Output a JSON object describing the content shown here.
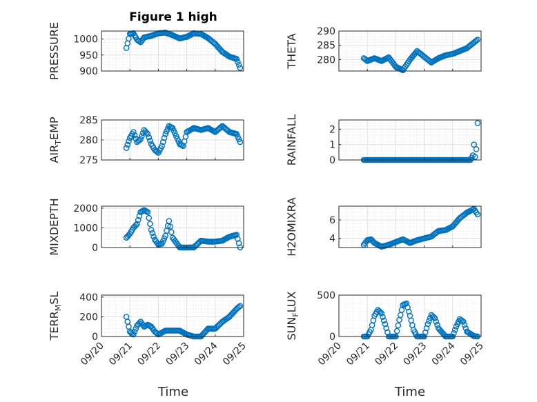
{
  "figure": {
    "title": "Figure 1 high"
  },
  "colors": {
    "marker": "#0072bd",
    "axis": "#262626",
    "grid": "#dfdfdf",
    "background": "#ffffff"
  },
  "chart_data": [
    {
      "type": "scatter",
      "id": "pressure",
      "title": "Figure 1 high",
      "ylabel": "PRESSURE",
      "ylim": [
        900,
        1025
      ],
      "yticks": [
        900,
        950,
        1000
      ],
      "grid": "on",
      "x": [
        "09/20 21:00",
        "09/21 00:00",
        "09/21 03:00",
        "09/21 06:00",
        "09/21 09:00",
        "09/21 12:00",
        "09/21 18:00",
        "09/22 00:00",
        "09/22 06:00",
        "09/22 12:00",
        "09/22 18:00",
        "09/23 00:00",
        "09/23 06:00",
        "09/23 12:00",
        "09/23 18:00",
        "09/24 00:00",
        "09/24 06:00",
        "09/24 12:00",
        "09/24 18:00",
        "09/24 21:00"
      ],
      "y": [
        972,
        1016,
        1018,
        998,
        990,
        1005,
        1010,
        1018,
        1020,
        1012,
        1002,
        1007,
        1018,
        1016,
        1003,
        985,
        960,
        945,
        938,
        910
      ]
    },
    {
      "type": "scatter",
      "id": "theta",
      "ylabel": "THETA",
      "ylim": [
        276,
        290
      ],
      "yticks": [
        280,
        285,
        290
      ],
      "grid": "on",
      "x": [
        "09/20 21:00",
        "09/21 00:00",
        "09/21 06:00",
        "09/21 12:00",
        "09/21 18:00",
        "09/22 00:00",
        "09/22 06:00",
        "09/22 12:00",
        "09/22 18:00",
        "09/23 00:00",
        "09/23 06:00",
        "09/23 12:00",
        "09/23 18:00",
        "09/24 00:00",
        "09/24 06:00",
        "09/24 12:00",
        "09/24 18:00",
        "09/24 21:00"
      ],
      "y": [
        280.5,
        279.5,
        280.5,
        279.5,
        280.8,
        277.5,
        276.3,
        280,
        283,
        281,
        279,
        280.5,
        281.5,
        282,
        283,
        284,
        286,
        287
      ]
    },
    {
      "type": "scatter",
      "id": "air_temp",
      "ylabel": "AIR_TEMP",
      "ylim": [
        275,
        285
      ],
      "yticks": [
        275,
        280,
        285
      ],
      "grid": "on",
      "x": [
        "09/20 21:00",
        "09/21 00:00",
        "09/21 03:00",
        "09/21 06:00",
        "09/21 09:00",
        "09/21 12:00",
        "09/21 15:00",
        "09/21 18:00",
        "09/21 21:00",
        "09/22 00:00",
        "09/22 03:00",
        "09/22 06:00",
        "09/22 09:00",
        "09/22 12:00",
        "09/22 15:00",
        "09/22 18:00",
        "09/22 21:00",
        "09/23 00:00",
        "09/23 06:00",
        "09/23 12:00",
        "09/23 18:00",
        "09/24 00:00",
        "09/24 06:00",
        "09/24 12:00",
        "09/24 18:00",
        "09/24 21:00"
      ],
      "y": [
        278,
        280.5,
        282,
        279.5,
        280.2,
        282.5,
        281.5,
        279,
        277.5,
        276.8,
        278.5,
        281.5,
        283.5,
        283,
        281,
        279,
        278.5,
        282,
        283,
        282.5,
        283,
        282,
        283.5,
        282,
        281.5,
        279.5
      ]
    },
    {
      "type": "scatter",
      "id": "rainfall",
      "ylabel": "RAINFALL",
      "ylim": [
        0,
        2.6
      ],
      "yticks": [
        0,
        1,
        2
      ],
      "grid": "on",
      "x": [
        "09/20 21:00",
        "09/21 00:00",
        "09/21 06:00",
        "09/21 12:00",
        "09/21 18:00",
        "09/22 00:00",
        "09/22 06:00",
        "09/22 12:00",
        "09/22 18:00",
        "09/23 00:00",
        "09/23 06:00",
        "09/23 12:00",
        "09/23 18:00",
        "09/24 00:00",
        "09/24 06:00",
        "09/24 12:00",
        "09/24 15:00",
        "09/24 17:00",
        "09/24 18:00",
        "09/24 19:00",
        "09/24 20:00",
        "09/24 21:00"
      ],
      "y": [
        0,
        0,
        0,
        0,
        0,
        0,
        0,
        0,
        0,
        0,
        0,
        0,
        0,
        0,
        0,
        0,
        0,
        0.3,
        1.0,
        0.2,
        0.7,
        2.4
      ]
    },
    {
      "type": "scatter",
      "id": "mixdepth",
      "ylabel": "MIXDEPTH",
      "ylim": [
        0,
        2100
      ],
      "yticks": [
        0,
        1000,
        2000
      ],
      "grid": "on",
      "x": [
        "09/20 21:00",
        "09/21 00:00",
        "09/21 03:00",
        "09/21 06:00",
        "09/21 09:00",
        "09/21 12:00",
        "09/21 15:00",
        "09/21 18:00",
        "09/21 21:00",
        "09/22 00:00",
        "09/22 03:00",
        "09/22 06:00",
        "09/22 09:00",
        "09/22 12:00",
        "09/22 18:00",
        "09/23 00:00",
        "09/23 06:00",
        "09/23 12:00",
        "09/23 18:00",
        "09/24 00:00",
        "09/24 06:00",
        "09/24 12:00",
        "09/24 18:00",
        "09/24 21:00"
      ],
      "y": [
        500,
        700,
        1000,
        1200,
        1800,
        1900,
        1800,
        900,
        400,
        150,
        200,
        600,
        1350,
        500,
        10,
        0,
        10,
        350,
        300,
        300,
        350,
        550,
        650,
        10
      ]
    },
    {
      "type": "scatter",
      "id": "h2omixra",
      "ylabel": "H2OMIXRA",
      "ylim": [
        3,
        7.5
      ],
      "yticks": [
        4,
        6
      ],
      "grid": "on",
      "x": [
        "09/20 21:00",
        "09/21 00:00",
        "09/21 03:00",
        "09/21 06:00",
        "09/21 12:00",
        "09/21 18:00",
        "09/22 00:00",
        "09/22 06:00",
        "09/22 12:00",
        "09/22 18:00",
        "09/23 00:00",
        "09/23 06:00",
        "09/23 12:00",
        "09/23 18:00",
        "09/24 00:00",
        "09/24 06:00",
        "09/24 12:00",
        "09/24 18:00",
        "09/24 21:00"
      ],
      "y": [
        3.3,
        3.8,
        3.9,
        3.5,
        3.1,
        3.3,
        3.6,
        3.9,
        3.5,
        3.8,
        4.0,
        4.2,
        4.8,
        4.9,
        5.3,
        6.2,
        6.8,
        7.2,
        6.6
      ]
    },
    {
      "type": "scatter",
      "id": "terr_msl",
      "ylabel": "TERR_MSL",
      "ylim": [
        0,
        420
      ],
      "yticks": [
        0,
        200,
        400
      ],
      "grid": "on",
      "x": [
        "09/20 21:00",
        "09/21 00:00",
        "09/21 03:00",
        "09/21 06:00",
        "09/21 09:00",
        "09/21 12:00",
        "09/21 15:00",
        "09/21 18:00",
        "09/21 21:00",
        "09/22 00:00",
        "09/22 06:00",
        "09/22 12:00",
        "09/22 18:00",
        "09/23 00:00",
        "09/23 06:00",
        "09/23 12:00",
        "09/23 18:00",
        "09/24 00:00",
        "09/24 06:00",
        "09/24 12:00",
        "09/24 18:00",
        "09/24 21:00"
      ],
      "x_note": "",
      "y": [
        200,
        50,
        20,
        110,
        150,
        100,
        120,
        100,
        50,
        20,
        60,
        60,
        60,
        20,
        0,
        0,
        80,
        80,
        150,
        200,
        280,
        310
      ]
    },
    {
      "type": "scatter",
      "id": "sun_flux",
      "ylabel": "SUN_FLUX",
      "ylim": [
        0,
        500
      ],
      "yticks": [
        0,
        500
      ],
      "grid": "on",
      "x": [
        "09/20 21:00",
        "09/21 00:00",
        "09/21 03:00",
        "09/21 06:00",
        "09/21 09:00",
        "09/21 12:00",
        "09/21 15:00",
        "09/21 18:00",
        "09/22 00:00",
        "09/22 03:00",
        "09/22 06:00",
        "09/22 09:00",
        "09/22 12:00",
        "09/22 15:00",
        "09/22 18:00",
        "09/23 00:00",
        "09/23 03:00",
        "09/23 06:00",
        "09/23 09:00",
        "09/23 12:00",
        "09/23 18:00",
        "09/24 00:00",
        "09/24 03:00",
        "09/24 06:00",
        "09/24 09:00",
        "09/24 12:00",
        "09/24 18:00",
        "09/24 21:00"
      ],
      "y": [
        0,
        0,
        80,
        250,
        320,
        280,
        150,
        0,
        0,
        200,
        380,
        400,
        250,
        80,
        0,
        0,
        150,
        260,
        220,
        100,
        0,
        0,
        120,
        210,
        180,
        60,
        5,
        0
      ]
    }
  ],
  "xaxis": {
    "ticks": [
      "09/20",
      "09/21",
      "09/22",
      "09/23",
      "09/24",
      "09/25"
    ],
    "label": "Time"
  }
}
